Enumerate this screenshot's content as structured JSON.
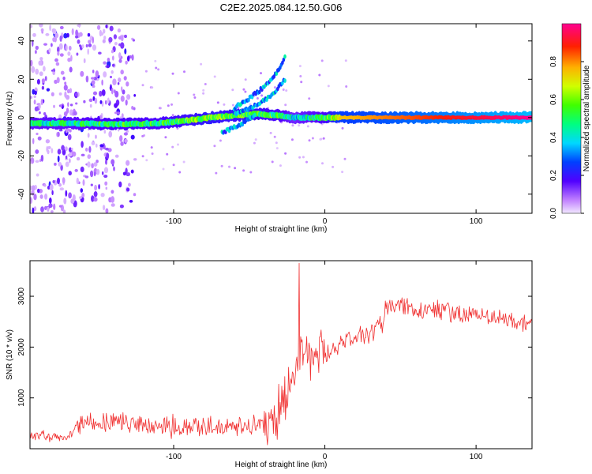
{
  "figure": {
    "title": "C2E2.2025.084.12.50.G06"
  },
  "colors": {
    "axis": "#000000",
    "snr_line": "#f03030",
    "background": "#ffffff"
  },
  "chart_data": [
    {
      "type": "heatmap",
      "title": "",
      "xlabel": "Height of straight line (km)",
      "ylabel": "Frequency (Hz)",
      "xlim": [
        -195,
        137
      ],
      "ylim": [
        -50,
        49
      ],
      "x_ticks": [
        -100,
        0,
        100
      ],
      "x_tick_labels": [
        "-100",
        "0",
        "100"
      ],
      "y_ticks": [
        -40,
        -20,
        0,
        20,
        40
      ],
      "y_tick_labels": [
        "-40",
        "-20",
        "0",
        "20",
        "40"
      ],
      "colorbar": {
        "label": "Normalized spectral amplitude",
        "range": [
          0,
          1
        ],
        "ticks": [
          0.0,
          0.2,
          0.4,
          0.6,
          0.8
        ],
        "tick_labels": [
          "0.0",
          "0.2",
          "0.4",
          "0.6",
          "0.8"
        ],
        "colormap": "rainbow"
      },
      "features": {
        "main_band": {
          "x": [
            -195,
            -170,
            -140,
            -110,
            -90,
            -75,
            -60,
            -45,
            -30,
            -20,
            -10,
            0,
            10,
            137
          ],
          "y": [
            -3,
            -3,
            -3.5,
            -3,
            -1.5,
            0,
            1,
            2,
            1,
            0,
            0,
            0,
            0,
            0
          ],
          "amplitude": [
            0.45,
            0.45,
            0.5,
            0.5,
            0.55,
            0.6,
            0.55,
            0.55,
            0.5,
            0.4,
            0.45,
            0.5,
            0.75,
            1.0
          ]
        },
        "rising_branch_upper": {
          "x": [
            -60,
            -50,
            -40,
            -32,
            -26
          ],
          "y": [
            5,
            10,
            16,
            23,
            32
          ]
        },
        "rising_branch_lower": {
          "x": [
            -60,
            -50,
            -42,
            -35,
            -26
          ],
          "y": [
            2,
            5,
            8,
            12,
            20
          ]
        },
        "falling_branch": {
          "x": [
            -68,
            -60,
            -52,
            -46
          ],
          "y": [
            -8,
            -5,
            -2,
            2
          ]
        }
      }
    },
    {
      "type": "line",
      "title": "",
      "xlabel": "Height of straight line (km)",
      "ylabel": "SNR (10 * v/v)",
      "xlim": [
        -195,
        137
      ],
      "ylim": [
        0,
        3700
      ],
      "x_ticks": [
        -100,
        0,
        100
      ],
      "x_tick_labels": [
        "-100",
        "0",
        "100"
      ],
      "y_ticks": [
        1000,
        2000,
        3000
      ],
      "y_tick_labels": [
        "1000",
        "2000",
        "3000"
      ],
      "series": [
        {
          "x": [
            -195,
            -180,
            -170,
            -160,
            -150,
            -140,
            -130,
            -120,
            -110,
            -100,
            -90,
            -80,
            -70,
            -60,
            -50,
            -40,
            -30,
            -25,
            -20,
            -15,
            -10,
            -5,
            0,
            5,
            10,
            20,
            30,
            38,
            40,
            50,
            60,
            70,
            80,
            90,
            100,
            110,
            120,
            130,
            137
          ],
          "values": [
            270,
            240,
            230,
            500,
            480,
            520,
            500,
            480,
            450,
            450,
            420,
            430,
            420,
            430,
            420,
            480,
            700,
            1150,
            1550,
            1750,
            1800,
            1850,
            1800,
            1950,
            2050,
            2200,
            2300,
            2450,
            2750,
            2800,
            2750,
            2750,
            2700,
            2650,
            2650,
            2550,
            2550,
            2450,
            2450
          ]
        }
      ]
    }
  ]
}
